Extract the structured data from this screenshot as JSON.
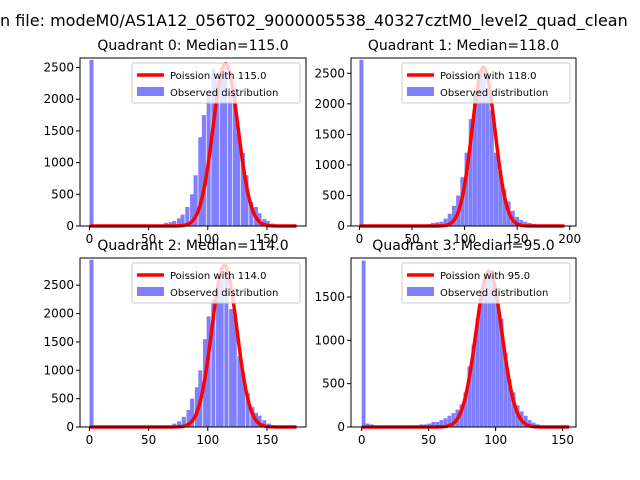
{
  "figure": {
    "suptitle": "n file: modeM0/AS1A12_056T02_9000005538_40327cztM0_level2_quad_clean"
  },
  "colors": {
    "hist": "#8080ff",
    "fit": "#ff0000",
    "axes": "#000000",
    "background": "#ffffff"
  },
  "legend": {
    "fit_label_template": "Poission with {m}",
    "observed_label": "Observed distribution",
    "placement": "upper right"
  },
  "chart_data": [
    {
      "type": "bar",
      "title": "Quadrant 0: Median=115.0",
      "median": 115.0,
      "legend": [
        "Poission with 115.0",
        "Observed distribution"
      ],
      "xlim": [
        -8,
        183
      ],
      "ylim": [
        0,
        2650
      ],
      "xticks": [
        0,
        50,
        100,
        150
      ],
      "yticks": [
        0,
        500,
        1000,
        1500,
        2000,
        2500
      ],
      "bin_width": 3.6,
      "bins_start": [
        0,
        63,
        67,
        70,
        74,
        77,
        81,
        85,
        88,
        92,
        95,
        99,
        103,
        106,
        110,
        113,
        117,
        121,
        124,
        128,
        131,
        135,
        139,
        142,
        146,
        149,
        153
      ],
      "counts": [
        2620,
        50,
        60,
        80,
        120,
        180,
        300,
        500,
        800,
        1400,
        1750,
        2100,
        2480,
        2300,
        2500,
        2500,
        2150,
        2200,
        1450,
        1150,
        800,
        380,
        300,
        200,
        110,
        80,
        40
      ],
      "fit_mean": 115.0,
      "fit_peak": 2560,
      "fit_sigma": 10.6,
      "fit_xrange": [
        0,
        175
      ]
    },
    {
      "type": "bar",
      "title": "Quadrant 1: Median=118.0",
      "median": 118.0,
      "legend": [
        "Poission with 118.0",
        "Observed distribution"
      ],
      "xlim": [
        -8,
        206
      ],
      "ylim": [
        0,
        2750
      ],
      "xticks": [
        0,
        50,
        100,
        150,
        200
      ],
      "yticks": [
        0,
        500,
        1000,
        1500,
        2000,
        2500
      ],
      "bin_width": 4.0,
      "bins_start": [
        0,
        60,
        64,
        68,
        72,
        76,
        80,
        84,
        88,
        92,
        96,
        100,
        104,
        108,
        112,
        116,
        120,
        124,
        128,
        132,
        136,
        140,
        144,
        148,
        152,
        156,
        160,
        164,
        168,
        172,
        176,
        180
      ],
      "counts": [
        2720,
        20,
        30,
        50,
        60,
        70,
        120,
        200,
        330,
        500,
        800,
        1200,
        1750,
        2200,
        2550,
        2550,
        2250,
        1900,
        1200,
        900,
        600,
        400,
        250,
        150,
        100,
        70,
        50,
        35,
        25,
        20,
        15,
        10
      ],
      "fit_mean": 118.0,
      "fit_peak": 2600,
      "fit_sigma": 10.9,
      "fit_xrange": [
        0,
        195
      ]
    },
    {
      "type": "bar",
      "title": "Quadrant 2: Median=114.0",
      "median": 114.0,
      "legend": [
        "Poission with 114.0",
        "Observed distribution"
      ],
      "xlim": [
        -8,
        183
      ],
      "ylim": [
        0,
        2980
      ],
      "xticks": [
        0,
        50,
        100,
        150
      ],
      "yticks": [
        0,
        500,
        1000,
        1500,
        2000,
        2500
      ],
      "bin_width": 3.6,
      "bins_start": [
        0,
        70,
        74,
        78,
        82,
        85,
        89,
        92,
        96,
        99,
        103,
        107,
        110,
        114,
        118,
        121,
        125,
        128,
        132,
        136,
        139,
        142,
        146,
        150
      ],
      "counts": [
        2950,
        60,
        100,
        180,
        300,
        500,
        700,
        1000,
        1550,
        1950,
        2250,
        2400,
        2600,
        2750,
        2080,
        1950,
        1250,
        950,
        600,
        350,
        250,
        200,
        120,
        60
      ],
      "fit_mean": 114.0,
      "fit_peak": 2850,
      "fit_sigma": 10.6,
      "fit_xrange": [
        0,
        175
      ]
    },
    {
      "type": "bar",
      "title": "Quadrant 3: Median=95.0",
      "median": 95.0,
      "legend": [
        "Poission with 95.0",
        "Observed distribution"
      ],
      "xlim": [
        -8,
        160
      ],
      "ylim": [
        0,
        1950
      ],
      "xticks": [
        0,
        50,
        100,
        150
      ],
      "yticks": [
        0,
        500,
        1000,
        1500
      ],
      "bin_width": 3.0,
      "bins_start": [
        0,
        3,
        6,
        40,
        43,
        46,
        49,
        52,
        55,
        58,
        61,
        64,
        67,
        70,
        73,
        76,
        79,
        82,
        85,
        88,
        91,
        94,
        97,
        100,
        103,
        106,
        109,
        112,
        115,
        118,
        121,
        124,
        127,
        130
      ],
      "counts": [
        1920,
        40,
        30,
        20,
        30,
        30,
        40,
        60,
        60,
        80,
        100,
        130,
        160,
        200,
        260,
        400,
        700,
        950,
        1250,
        1550,
        1700,
        1750,
        1650,
        1450,
        1250,
        850,
        550,
        400,
        250,
        180,
        130,
        80,
        50,
        30
      ],
      "fit_mean": 95.0,
      "fit_peak": 1800,
      "fit_sigma": 9.7,
      "fit_xrange": [
        0,
        155
      ]
    }
  ]
}
